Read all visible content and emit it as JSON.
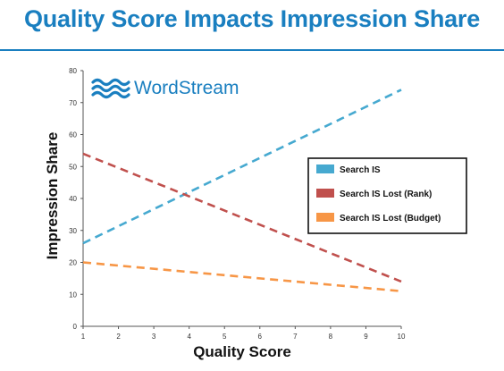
{
  "header": {
    "title": "Quality Score Impacts Impression Share"
  },
  "brand": {
    "name": "WordStream",
    "icon": "wordstream-waves-logo",
    "color": "#1a7fc0"
  },
  "chart_data": {
    "type": "line",
    "title": "",
    "xlabel": "Quality Score",
    "ylabel": "Impression Share",
    "xlim": [
      1,
      10
    ],
    "ylim": [
      0,
      80
    ],
    "x_ticks": [
      "1",
      "2",
      "3",
      "4",
      "5",
      "6",
      "7",
      "8",
      "9",
      "10"
    ],
    "y_ticks": [
      "0",
      "10",
      "20",
      "30",
      "40",
      "50",
      "60",
      "70",
      "80"
    ],
    "grid": false,
    "legend_position": "right",
    "series": [
      {
        "name": "Search IS",
        "color": "#46a9d0",
        "line_style": "dashed",
        "x": [
          1,
          10
        ],
        "y": [
          26,
          74
        ]
      },
      {
        "name": "Search IS Lost (Rank)",
        "color": "#c0504d",
        "line_style": "dashed",
        "x": [
          1,
          10
        ],
        "y": [
          54,
          14
        ]
      },
      {
        "name": "Search IS Lost (Budget)",
        "color": "#f79646",
        "line_style": "dashed",
        "x": [
          1,
          10
        ],
        "y": [
          20,
          11
        ]
      }
    ]
  }
}
